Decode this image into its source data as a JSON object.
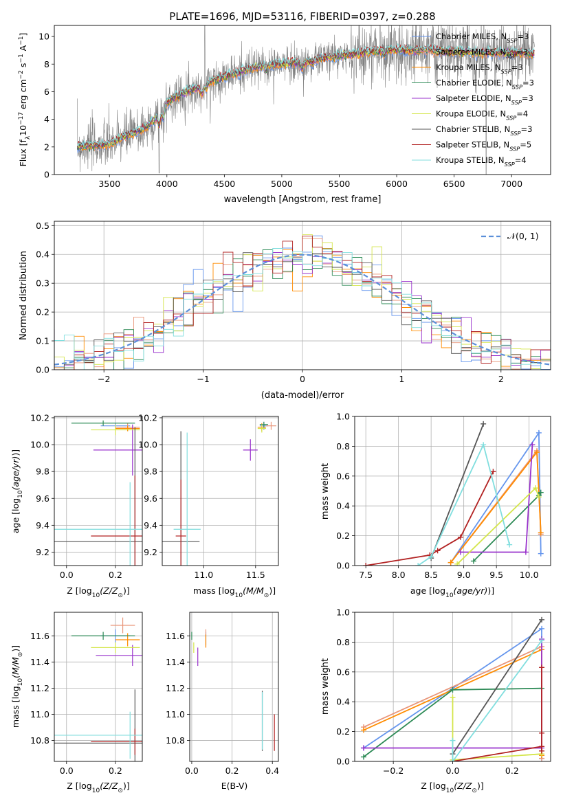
{
  "colors": {
    "chabrier_miles": "#6495ed",
    "salpeter_miles": "#e9967a",
    "kroupa_miles": "#ff8c00",
    "chabrier_elodie": "#2e8b57",
    "salpeter_elodie": "#9932cc",
    "kroupa_elodie": "#d4e54a",
    "chabrier_stelib": "#555555",
    "salpeter_stelib": "#b22222",
    "kroupa_stelib": "#80dede",
    "gray": "#808080",
    "gauss": "#5b8fd9"
  },
  "chart_data": [
    {
      "id": "spectrum",
      "type": "line",
      "title": "PLATE=1696, MJD=53116, FIBERID=0397, z=0.288",
      "xlabel": "wavelength [Angstrom, rest frame]",
      "ylabel": "Flux [f",
      "ylabel_sub": "λ",
      "ylabel_rest": "10",
      "ylabel_exp1": "−17",
      "ylabel_mid": " erg cm",
      "ylabel_exp2": "−2",
      "ylabel_s": " s",
      "ylabel_exp3": "−1",
      "ylabel_a": " A",
      "ylabel_exp4": "−1",
      "ylabel_end": "]",
      "xlim": [
        3020,
        7340
      ],
      "ylim": [
        0,
        10.8
      ],
      "xticks": [
        3500,
        4000,
        4500,
        5000,
        5500,
        6000,
        6500,
        7000
      ],
      "yticks": [
        0,
        2,
        4,
        6,
        8,
        10
      ],
      "grid": false,
      "legend_position": "right",
      "legend": [
        {
          "label": "Chabrier MILES, N",
          "sub": "SSP",
          "tail": "=3",
          "color": "#6495ed"
        },
        {
          "label": "Salpeter MILES, N",
          "sub": "SSP",
          "tail": "=3",
          "color": "#e9967a"
        },
        {
          "label": "Kroupa MILES, N",
          "sub": "SSP",
          "tail": "=3",
          "color": "#ff8c00"
        },
        {
          "label": "Chabrier ELODIE, N",
          "sub": "SSP",
          "tail": "=3",
          "color": "#2e8b57"
        },
        {
          "label": "Salpeter ELODIE, N",
          "sub": "SSP",
          "tail": "=3",
          "color": "#9932cc"
        },
        {
          "label": "Kroupa ELODIE, N",
          "sub": "SSP",
          "tail": "=4",
          "color": "#d4e54a"
        },
        {
          "label": "Chabrier STELIB, N",
          "sub": "SSP",
          "tail": "=3",
          "color": "#555555"
        },
        {
          "label": "Salpeter STELIB, N",
          "sub": "SSP",
          "tail": "=5",
          "color": "#b22222"
        },
        {
          "label": "Kroupa STELIB, N",
          "sub": "SSP",
          "tail": "=4",
          "color": "#80dede"
        }
      ],
      "continuum": [
        [
          3220,
          2.0
        ],
        [
          3300,
          2.1
        ],
        [
          3400,
          2.1
        ],
        [
          3500,
          2.2
        ],
        [
          3600,
          2.6
        ],
        [
          3700,
          3.0
        ],
        [
          3800,
          3.3
        ],
        [
          3900,
          4.0
        ],
        [
          4000,
          5.2
        ],
        [
          4100,
          5.8
        ],
        [
          4200,
          6.1
        ],
        [
          4300,
          6.3
        ],
        [
          4400,
          6.8
        ],
        [
          4500,
          7.1
        ],
        [
          4600,
          7.3
        ],
        [
          4700,
          7.6
        ],
        [
          4800,
          7.8
        ],
        [
          4900,
          7.9
        ],
        [
          5000,
          8.0
        ],
        [
          5100,
          8.1
        ],
        [
          5200,
          8.1
        ],
        [
          5300,
          8.3
        ],
        [
          5400,
          8.5
        ],
        [
          5500,
          8.6
        ],
        [
          5600,
          8.7
        ],
        [
          5700,
          8.8
        ],
        [
          5800,
          8.9
        ],
        [
          5900,
          9.0
        ],
        [
          6000,
          9.0
        ],
        [
          6100,
          9.0
        ],
        [
          6200,
          9.0
        ],
        [
          6300,
          9.0
        ],
        [
          6400,
          8.9
        ],
        [
          6500,
          8.9
        ],
        [
          6600,
          8.9
        ],
        [
          6700,
          8.8
        ],
        [
          6800,
          8.8
        ],
        [
          6900,
          8.8
        ],
        [
          7000,
          8.8
        ],
        [
          7100,
          8.8
        ],
        [
          7200,
          8.7
        ]
      ]
    },
    {
      "id": "residuals",
      "type": "histogram",
      "xlabel": "(data-model)/error",
      "ylabel": "Normed distribution",
      "xlim": [
        -2.5,
        2.5
      ],
      "ylim": [
        0,
        0.515
      ],
      "xticks": [
        -2,
        -1,
        0,
        1,
        2
      ],
      "yticks": [
        0.0,
        0.1,
        0.2,
        0.3,
        0.4,
        0.5
      ],
      "grid": true,
      "legend_position": "top-right",
      "legend_label": "𝒩(0, 1)",
      "bin_width": 0.1
    },
    {
      "id": "age_vs_Z",
      "type": "scatter",
      "xlabel": "Z [log",
      "xlabel_sub": "10",
      "xlabel_rest": "(Z/Z",
      "xlabel_sun": "⊙",
      "xlabel_end": ")]",
      "ylabel": "age  [log10(age/yr)]",
      "xlim": [
        -0.05,
        0.31
      ],
      "ylim": [
        9.1,
        10.21
      ],
      "xticks": [
        0.0,
        0.2
      ],
      "yticks": [
        9.2,
        9.4,
        9.6,
        9.8,
        10.0,
        10.2
      ],
      "grid": true,
      "points": [
        {
          "s": "chabrier_miles",
          "x": 0.2,
          "xerr": 0.06,
          "y": 10.14,
          "yerr": 0.02
        },
        {
          "s": "salpeter_miles",
          "x": 0.25,
          "xerr": 0.05,
          "y": 10.13,
          "yerr": 0.03
        },
        {
          "s": "kroupa_miles",
          "x": 0.25,
          "xerr": 0.05,
          "y": 10.12,
          "yerr": 0.02
        },
        {
          "s": "chabrier_elodie",
          "x": 0.15,
          "xerr": 0.13,
          "y": 10.16,
          "yerr": 0.02
        },
        {
          "s": "salpeter_elodie",
          "x": 0.27,
          "xerr": 0.16,
          "y": 9.96,
          "yerr": 0.19
        },
        {
          "s": "kroupa_elodie",
          "x": 0.2,
          "xerr": 0.1,
          "y": 10.11,
          "yerr": 0.04
        },
        {
          "s": "chabrier_stelib",
          "x": 0.28,
          "xerr": 0.33,
          "y": 9.28,
          "yerr": 0.85
        },
        {
          "s": "salpeter_stelib",
          "x": 0.28,
          "xerr": 0.18,
          "y": 9.32,
          "yerr": 0.45
        },
        {
          "s": "kroupa_stelib",
          "x": 0.26,
          "xerr": 0.32,
          "y": 9.37,
          "yerr": 0.35
        }
      ]
    },
    {
      "id": "age_vs_mass",
      "type": "scatter",
      "xlabel": "mass [log",
      "xlabel_sub": "10",
      "xlabel_rest": "(M/M",
      "xlabel_sun": "⊙",
      "xlabel_end": ")]",
      "xlim": [
        10.6,
        11.72
      ],
      "ylim": [
        9.1,
        10.21
      ],
      "xticks": [
        11.0,
        11.5
      ],
      "yticks": [
        9.2,
        9.4,
        9.6,
        9.8,
        10.0,
        10.2
      ],
      "grid": true,
      "points": [
        {
          "s": "chabrier_miles",
          "x": 11.58,
          "xerr": 0.04,
          "y": 10.14,
          "yerr": 0.03
        },
        {
          "s": "salpeter_miles",
          "x": 11.65,
          "xerr": 0.05,
          "y": 10.14,
          "yerr": 0.03
        },
        {
          "s": "kroupa_miles",
          "x": 11.56,
          "xerr": 0.04,
          "y": 10.13,
          "yerr": 0.03
        },
        {
          "s": "chabrier_elodie",
          "x": 11.58,
          "xerr": 0.04,
          "y": 10.15,
          "yerr": 0.02
        },
        {
          "s": "salpeter_elodie",
          "x": 11.45,
          "xerr": 0.07,
          "y": 9.96,
          "yerr": 0.08
        },
        {
          "s": "kroupa_elodie",
          "x": 11.56,
          "xerr": 0.04,
          "y": 10.12,
          "yerr": 0.03
        },
        {
          "s": "chabrier_stelib",
          "x": 10.78,
          "xerr": 0.18,
          "y": 9.28,
          "yerr": 0.82
        },
        {
          "s": "salpeter_stelib",
          "x": 10.78,
          "xerr": 0.05,
          "y": 9.32,
          "yerr": 0.42
        },
        {
          "s": "kroupa_stelib",
          "x": 10.84,
          "xerr": 0.13,
          "y": 9.37,
          "yerr": 0.72
        }
      ]
    },
    {
      "id": "weight_vs_age",
      "type": "line",
      "xlabel": "age  [log10(age/yr)]",
      "ylabel": "mass weight",
      "xlim": [
        7.33,
        10.33
      ],
      "ylim": [
        0,
        1.0
      ],
      "xticks": [
        7.5,
        8.0,
        8.5,
        9.0,
        9.5,
        10.0
      ],
      "yticks": [
        0.0,
        0.2,
        0.4,
        0.6,
        0.8,
        1.0
      ],
      "grid": true,
      "series": [
        {
          "s": "chabrier_miles",
          "x": [
            8.8,
            10.15,
            10.18
          ],
          "y": [
            0.02,
            0.89,
            0.08
          ]
        },
        {
          "s": "salpeter_miles",
          "x": [
            8.8,
            10.12,
            10.18
          ],
          "y": [
            0.02,
            0.77,
            0.21
          ]
        },
        {
          "s": "kroupa_miles",
          "x": [
            8.8,
            10.12,
            10.18
          ],
          "y": [
            0.02,
            0.76,
            0.22
          ]
        },
        {
          "s": "chabrier_elodie",
          "x": [
            9.15,
            10.15,
            10.18
          ],
          "y": [
            0.03,
            0.47,
            0.49
          ]
        },
        {
          "s": "salpeter_elodie",
          "x": [
            8.95,
            9.95,
            10.05
          ],
          "y": [
            0.09,
            0.09,
            0.81
          ]
        },
        {
          "s": "kroupa_elodie",
          "x": [
            8.9,
            10.1,
            10.15
          ],
          "y": [
            0.01,
            0.52,
            0.46
          ]
        },
        {
          "s": "chabrier_stelib",
          "x": [
            8.5,
            9.3
          ],
          "y": [
            0.05,
            0.95
          ]
        },
        {
          "s": "salpeter_stelib",
          "x": [
            7.5,
            8.48,
            8.6,
            8.95,
            9.45
          ],
          "y": [
            0.0,
            0.07,
            0.1,
            0.19,
            0.63
          ]
        },
        {
          "s": "kroupa_stelib",
          "x": [
            8.3,
            8.5,
            9.3,
            9.7
          ],
          "y": [
            0.0,
            0.06,
            0.81,
            0.14
          ]
        }
      ]
    },
    {
      "id": "mass_vs_Z",
      "type": "scatter",
      "xlabel": "Z [log",
      "xlabel_sub": "10",
      "xlabel_rest": "(Z/Z",
      "xlabel_sun": "⊙",
      "xlabel_end": ")]",
      "ylabel": "mass [log10(M/M⊙)]",
      "xlim": [
        -0.05,
        0.31
      ],
      "ylim": [
        10.64,
        11.78
      ],
      "xticks": [
        0.0,
        0.2
      ],
      "yticks": [
        10.8,
        11.0,
        11.2,
        11.4,
        11.6
      ],
      "grid": true,
      "points": [
        {
          "s": "chabrier_miles",
          "x": 0.2,
          "xerr": 0.06,
          "y": 11.6,
          "yerr": 0.05
        },
        {
          "s": "salpeter_miles",
          "x": 0.23,
          "xerr": 0.05,
          "y": 11.68,
          "yerr": 0.06
        },
        {
          "s": "kroupa_miles",
          "x": 0.25,
          "xerr": 0.05,
          "y": 11.57,
          "yerr": 0.05
        },
        {
          "s": "chabrier_elodie",
          "x": 0.15,
          "xerr": 0.13,
          "y": 11.6,
          "yerr": 0.03
        },
        {
          "s": "salpeter_elodie",
          "x": 0.27,
          "xerr": 0.15,
          "y": 11.45,
          "yerr": 0.08
        },
        {
          "s": "kroupa_elodie",
          "x": 0.2,
          "xerr": 0.1,
          "y": 11.51,
          "yerr": 0.04
        },
        {
          "s": "chabrier_stelib",
          "x": 0.28,
          "xerr": 0.33,
          "y": 10.78,
          "yerr": 0.41
        },
        {
          "s": "salpeter_stelib",
          "x": 0.28,
          "xerr": 0.18,
          "y": 10.79,
          "yerr": 0.1
        },
        {
          "s": "kroupa_stelib",
          "x": 0.26,
          "xerr": 0.32,
          "y": 10.84,
          "yerr": 0.18
        }
      ]
    },
    {
      "id": "mass_vs_ebv",
      "type": "scatter",
      "xlabel": "E(B-V)",
      "xlim": [
        -0.01,
        0.43
      ],
      "ylim": [
        10.64,
        11.78
      ],
      "xticks": [
        0.0,
        0.2,
        0.4
      ],
      "yticks": [
        10.8,
        11.0,
        11.2,
        11.4,
        11.6
      ],
      "grid": true,
      "points": [
        {
          "s": "chabrier_miles",
          "x": 0.07,
          "xerr": 0.0,
          "y": 11.58,
          "yerr": 0.05
        },
        {
          "s": "salpeter_miles",
          "x": 0.07,
          "xerr": 0.0,
          "y": 11.58,
          "yerr": 0.07
        },
        {
          "s": "kroupa_miles",
          "x": 0.07,
          "xerr": 0.0,
          "y": 11.56,
          "yerr": 0.05
        },
        {
          "s": "chabrier_elodie",
          "x": 0.0,
          "xerr": 0.0,
          "y": 11.6,
          "yerr": 0.03
        },
        {
          "s": "salpeter_elodie",
          "x": 0.03,
          "xerr": 0.0,
          "y": 11.44,
          "yerr": 0.07
        },
        {
          "s": "kroupa_elodie",
          "x": 0.01,
          "xerr": 0.0,
          "y": 11.51,
          "yerr": 0.04
        },
        {
          "s": "chabrier_stelib",
          "x": 0.35,
          "xerr": 0.0,
          "y": 10.95,
          "yerr": 0.23
        },
        {
          "s": "salpeter_stelib",
          "x": 0.41,
          "xerr": 0.0,
          "y": 10.86,
          "yerr": 0.14
        },
        {
          "s": "kroupa_stelib",
          "x": 0.35,
          "xerr": 0.0,
          "y": 10.95,
          "yerr": 0.22
        }
      ]
    },
    {
      "id": "weight_vs_Z",
      "type": "line",
      "xlabel": "Z [log",
      "xlabel_sub": "10",
      "xlabel_rest": "(Z/Z",
      "xlabel_sun": "⊙",
      "xlabel_end": ")]",
      "ylabel": "mass weight",
      "xlim": [
        -0.33,
        0.33
      ],
      "ylim": [
        0,
        1.0
      ],
      "xticks": [
        -0.2,
        0.0,
        0.2
      ],
      "yticks": [
        0.0,
        0.2,
        0.4,
        0.6,
        0.8,
        1.0
      ],
      "grid": true,
      "series": [
        {
          "s": "chabrier_miles",
          "x": [
            -0.3,
            0.3,
            0.3
          ],
          "y": [
            0.09,
            0.89,
            0.02
          ]
        },
        {
          "s": "salpeter_miles",
          "x": [
            -0.3,
            0.3,
            0.3
          ],
          "y": [
            0.23,
            0.77,
            0.02
          ]
        },
        {
          "s": "kroupa_miles",
          "x": [
            -0.3,
            0.3,
            0.3
          ],
          "y": [
            0.21,
            0.75,
            0.04
          ]
        },
        {
          "s": "chabrier_elodie",
          "x": [
            -0.3,
            0.0,
            0.3
          ],
          "y": [
            0.03,
            0.48,
            0.49
          ]
        },
        {
          "s": "salpeter_elodie",
          "x": [
            -0.3,
            0.3,
            0.3
          ],
          "y": [
            0.09,
            0.09,
            0.82
          ]
        },
        {
          "s": "kroupa_elodie",
          "x": [
            0.0,
            0.0,
            0.3
          ],
          "y": [
            0.43,
            0.01,
            0.05
          ]
        },
        {
          "s": "chabrier_stelib",
          "x": [
            0.0,
            0.3
          ],
          "y": [
            0.05,
            0.95
          ]
        },
        {
          "s": "salpeter_stelib",
          "x": [
            0.0,
            0.3,
            0.3,
            0.3,
            0.3
          ],
          "y": [
            0.0,
            0.1,
            0.19,
            0.63,
            0.07
          ]
        },
        {
          "s": "kroupa_stelib",
          "x": [
            0.0,
            0.0,
            0.3
          ],
          "y": [
            0.14,
            0.0,
            0.81
          ]
        }
      ]
    }
  ]
}
